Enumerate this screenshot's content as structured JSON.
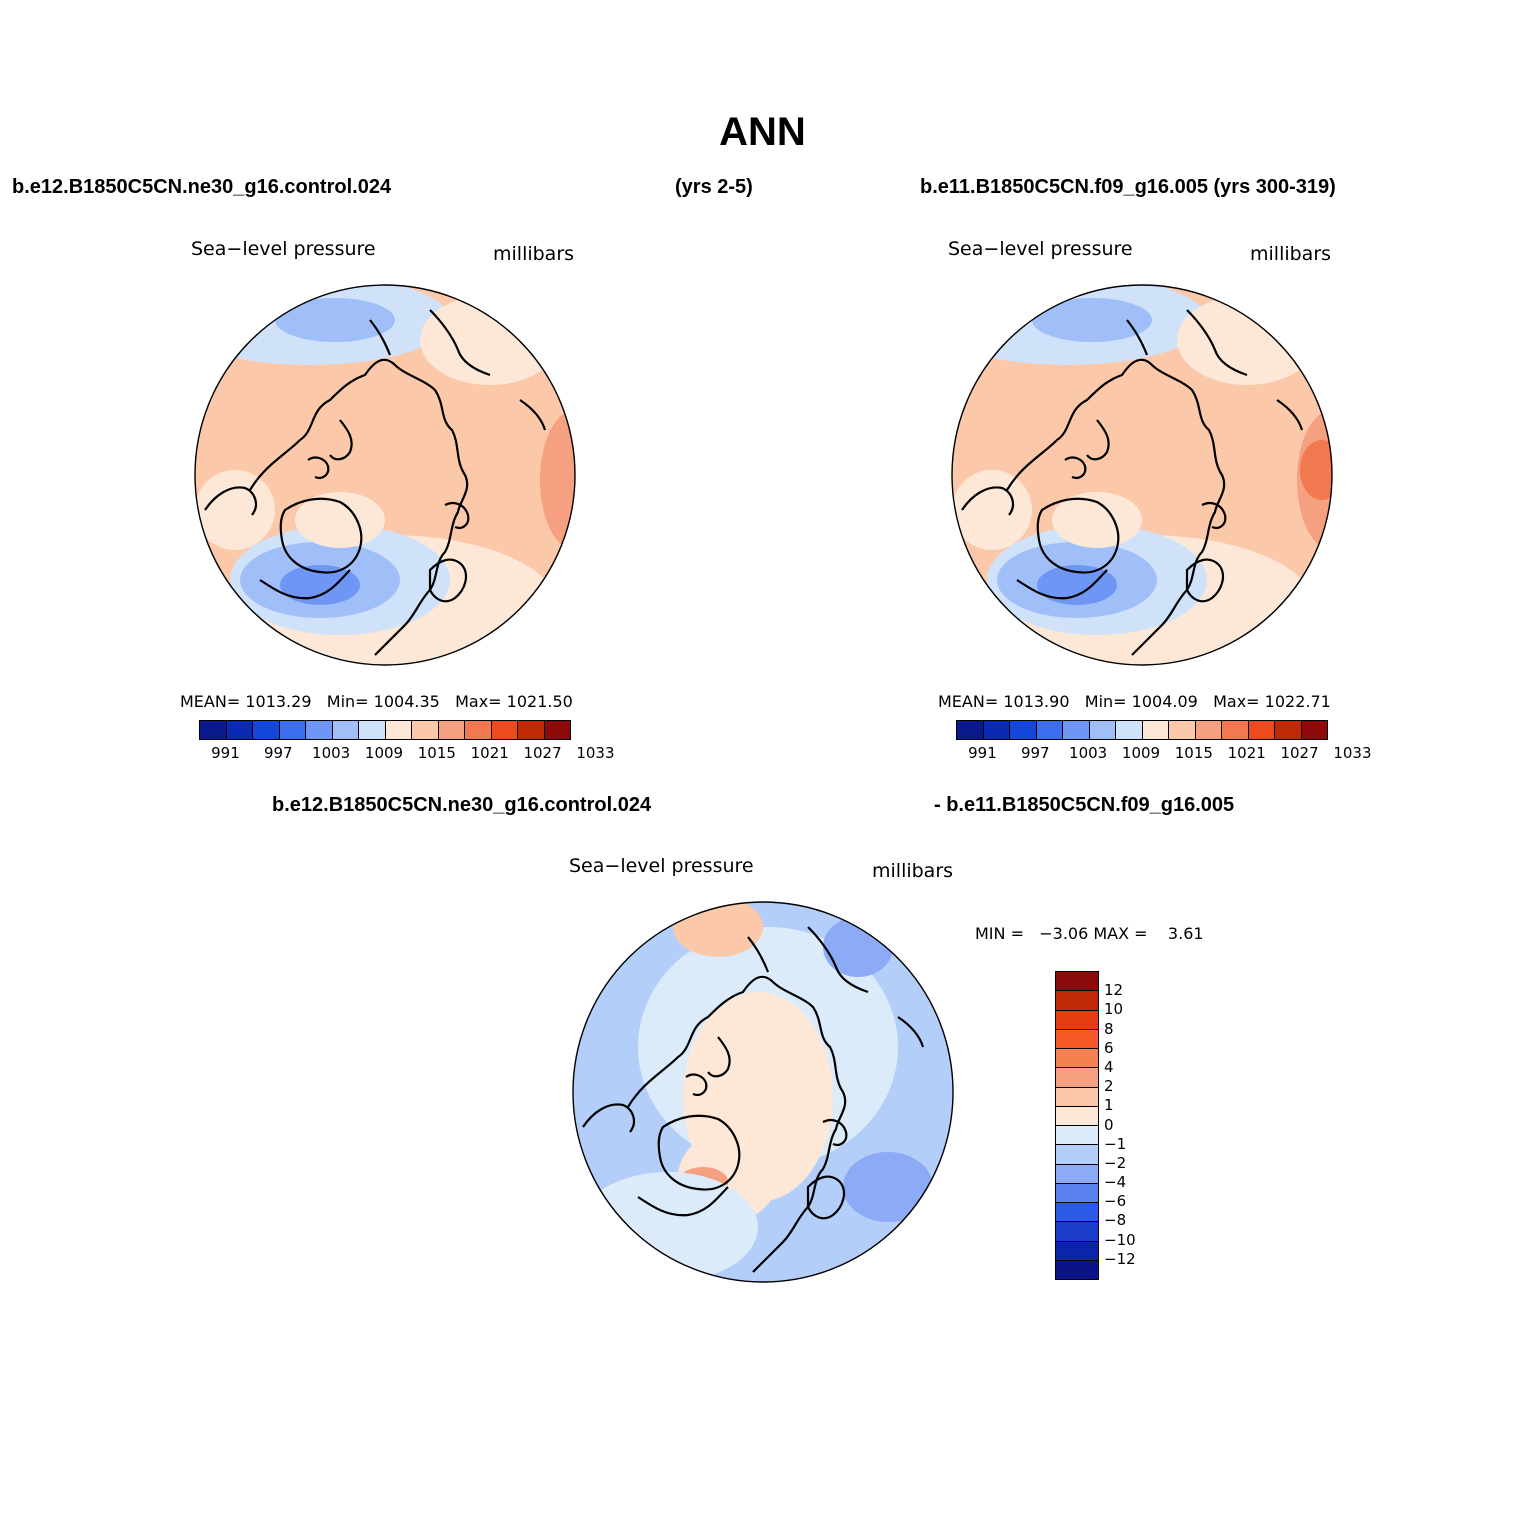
{
  "figure": {
    "title": "ANN",
    "header_left": "b.e12.B1850C5CN.ne30_g16.control.024",
    "header_mid": "(yrs 2-5)",
    "header_right": "b.e11.B1850C5CN.f09_g16.005 (yrs 300-319)",
    "diff_header_left": "b.e12.B1850C5CN.ne30_g16.control.024",
    "diff_header_right": "- b.e11.B1850C5CN.f09_g16.005"
  },
  "panel_left": {
    "variable": "Sea−level pressure",
    "units": "millibars",
    "mean_label": "MEAN=",
    "mean": "1013.29",
    "min_label": "Min=",
    "min": "1004.35",
    "max_label": "Max=",
    "max": "1021.50"
  },
  "panel_right": {
    "variable": "Sea−level pressure",
    "units": "millibars",
    "mean_label": "MEAN=",
    "mean": "1013.90",
    "min_label": "Min=",
    "min": "1004.09",
    "max_label": "Max=",
    "max": "1022.71"
  },
  "panel_diff": {
    "variable": "Sea−level pressure",
    "units": "millibars",
    "min_label": "MIN =",
    "min": "−3.06",
    "max_label": "MAX =",
    "max": "3.61"
  },
  "colorbar_abs": {
    "colors": [
      "#0a1a8c",
      "#0a2ab4",
      "#1446dc",
      "#3c6ef0",
      "#6e96f5",
      "#a0bef8",
      "#cfe2fa",
      "#fde8d8",
      "#fbc8aa",
      "#f5a080",
      "#f27850",
      "#ee4a1e",
      "#c02808",
      "#8c0a0a"
    ],
    "tick_labels": [
      "991",
      "997",
      "1003",
      "1009",
      "1015",
      "1021",
      "1027",
      "1033"
    ]
  },
  "colorbar_diff": {
    "colors": [
      "#8c0a0a",
      "#c02808",
      "#e63c14",
      "#f55a28",
      "#f58050",
      "#f5a080",
      "#fbc8aa",
      "#fde8d8",
      "#dcebfa",
      "#b4cefa",
      "#8caaf5",
      "#5a82ee",
      "#2a5ae6",
      "#1a3ec8",
      "#0a24aa",
      "#0a1488"
    ],
    "tick_labels": [
      "12",
      "10",
      "8",
      "6",
      "4",
      "2",
      "1",
      "0",
      "−1",
      "−2",
      "−4",
      "−6",
      "−8",
      "−10",
      "−12"
    ]
  },
  "chart_data": [
    {
      "type": "heatmap",
      "projection": "north polar stereographic",
      "variable": "Sea−level pressure",
      "units": "millibars",
      "stats": {
        "mean": 1013.29,
        "min": 1004.35,
        "max": 1021.5
      },
      "contour_levels": [
        991,
        994,
        997,
        1000,
        1003,
        1006,
        1009,
        1012,
        1015,
        1018,
        1021,
        1024,
        1027,
        1030,
        1033
      ]
    },
    {
      "type": "heatmap",
      "projection": "north polar stereographic",
      "variable": "Sea−level pressure",
      "units": "millibars",
      "stats": {
        "mean": 1013.9,
        "min": 1004.09,
        "max": 1022.71
      },
      "contour_levels": [
        991,
        994,
        997,
        1000,
        1003,
        1006,
        1009,
        1012,
        1015,
        1018,
        1021,
        1024,
        1027,
        1030,
        1033
      ]
    },
    {
      "type": "heatmap",
      "projection": "north polar stereographic",
      "variable": "Sea−level pressure",
      "units": "millibars",
      "stats": {
        "min": -3.06,
        "max": 3.61
      },
      "contour_levels": [
        12,
        10,
        8,
        6,
        4,
        2,
        1,
        0,
        -1,
        -2,
        -4,
        -6,
        -8,
        -10,
        -12
      ]
    }
  ]
}
